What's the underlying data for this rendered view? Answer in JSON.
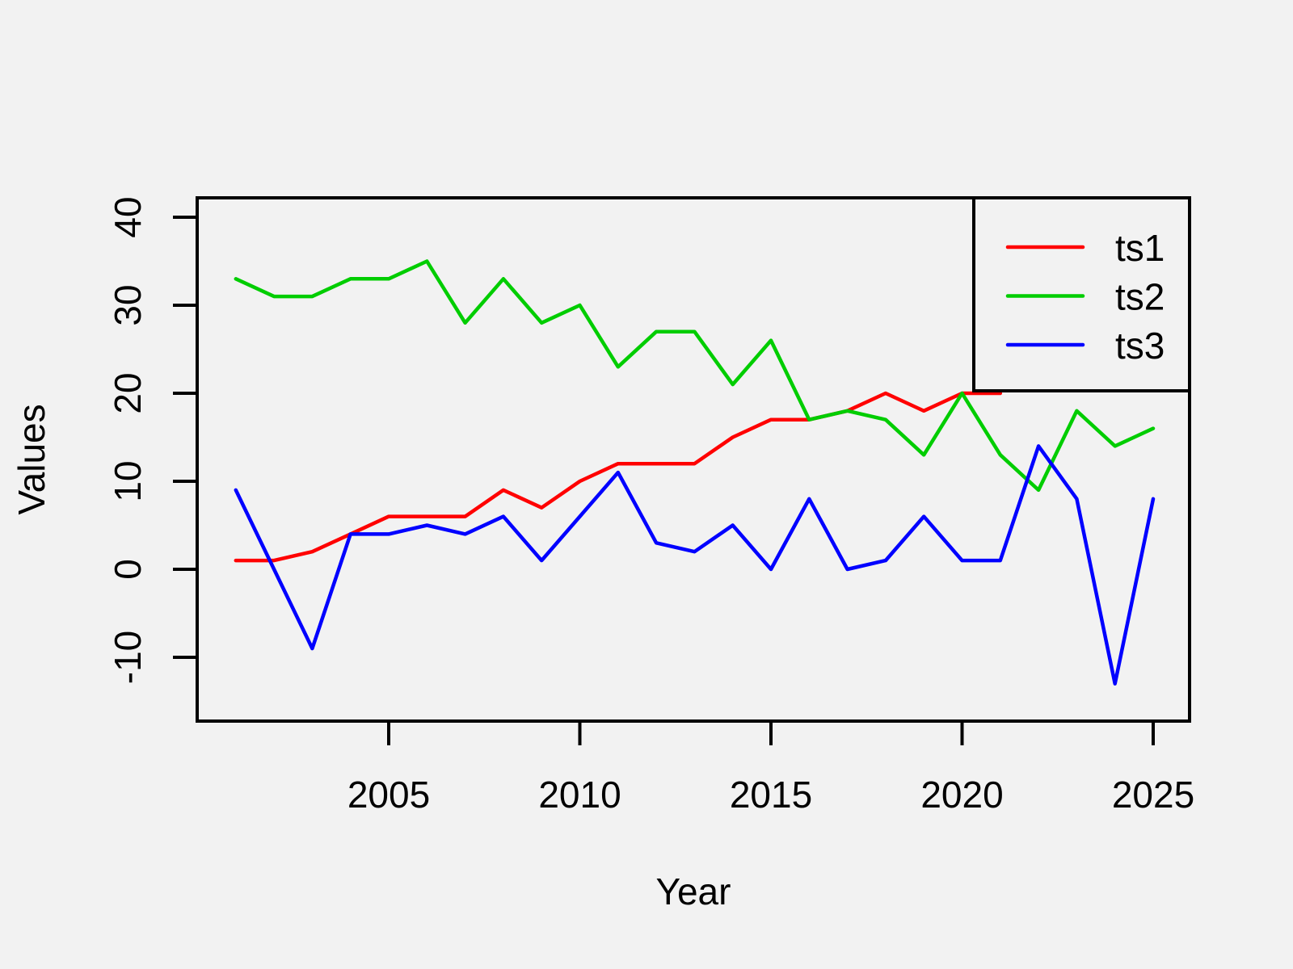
{
  "chart_data": {
    "type": "line",
    "title": "",
    "xlabel": "Year",
    "ylabel": "Values",
    "x_ticks": [
      2005,
      2010,
      2015,
      2020,
      2025
    ],
    "y_ticks": [
      -10,
      0,
      10,
      20,
      30,
      40
    ],
    "xlim": [
      2000,
      2026
    ],
    "ylim": [
      -17,
      42
    ],
    "grid": false,
    "legend_position": "topright",
    "series": [
      {
        "name": "ts1",
        "color": "#ff0000",
        "start_year": 2001,
        "values": [
          1,
          1,
          2,
          4,
          6,
          6,
          6,
          9,
          7,
          10,
          12,
          12,
          12,
          15,
          17,
          17,
          18,
          20,
          18,
          20,
          20
        ]
      },
      {
        "name": "ts2",
        "color": "#00cd00",
        "start_year": 2001,
        "values": [
          33,
          31,
          31,
          33,
          33,
          35,
          28,
          33,
          28,
          30,
          23,
          27,
          27,
          21,
          26,
          17,
          18,
          17,
          13,
          20,
          13,
          9,
          18,
          14,
          16
        ]
      },
      {
        "name": "ts3",
        "color": "#0000ff",
        "start_year": 2001,
        "values": [
          9,
          0,
          -9,
          4,
          4,
          5,
          4,
          6,
          1,
          6,
          11,
          3,
          2,
          5,
          0,
          8,
          0,
          1,
          6,
          1,
          1,
          14,
          8,
          -13,
          8
        ]
      }
    ]
  },
  "legend": {
    "items": [
      "ts1",
      "ts2",
      "ts3"
    ]
  },
  "colors": {
    "background": "#f2f2f2",
    "axis": "#000000",
    "text": "#000000"
  }
}
